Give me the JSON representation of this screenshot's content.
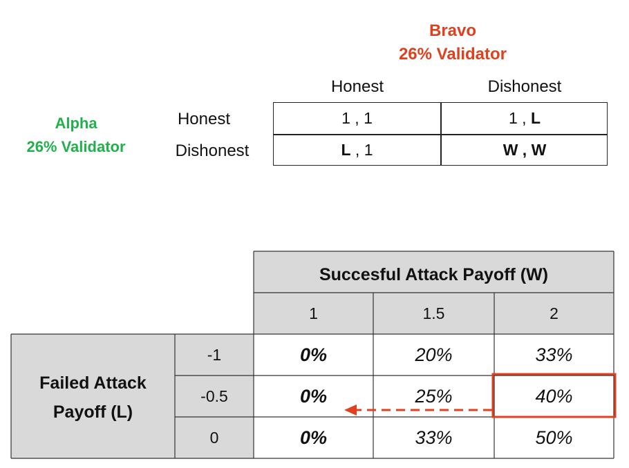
{
  "top": {
    "bravo_name": "Bravo",
    "bravo_sub": "26% Validator",
    "alpha_name": "Alpha",
    "alpha_sub": "26% Validator",
    "col_honest": "Honest",
    "col_dishonest": "Dishonest",
    "row_honest": "Honest",
    "row_dishonest": "Dishonest",
    "cells": {
      "hh_a": "1",
      "hh_sep": " , ",
      "hh_b": "1",
      "hd_a": "1",
      "hd_sep": " , ",
      "hd_b": "L",
      "dh_a": "L",
      "dh_sep": " , ",
      "dh_b": "1",
      "dd": "W , W"
    }
  },
  "bottom": {
    "col_header": "Succesful Attack Payoff (W)",
    "row_header_line1": "Failed Attack",
    "row_header_line2": "Payoff (L)",
    "w_values": [
      "1",
      "1.5",
      "2"
    ],
    "l_values": [
      "-1",
      "-0.5",
      "0"
    ],
    "rows": [
      [
        "0%",
        "20%",
        "33%"
      ],
      [
        "0%",
        "25%",
        "40%"
      ],
      [
        "0%",
        "33%",
        "50%"
      ]
    ]
  },
  "colors": {
    "bravo": "#e0401d",
    "alpha": "#22b04b",
    "highlight": "#e0401d",
    "header_fill": "#d9d9d9"
  }
}
